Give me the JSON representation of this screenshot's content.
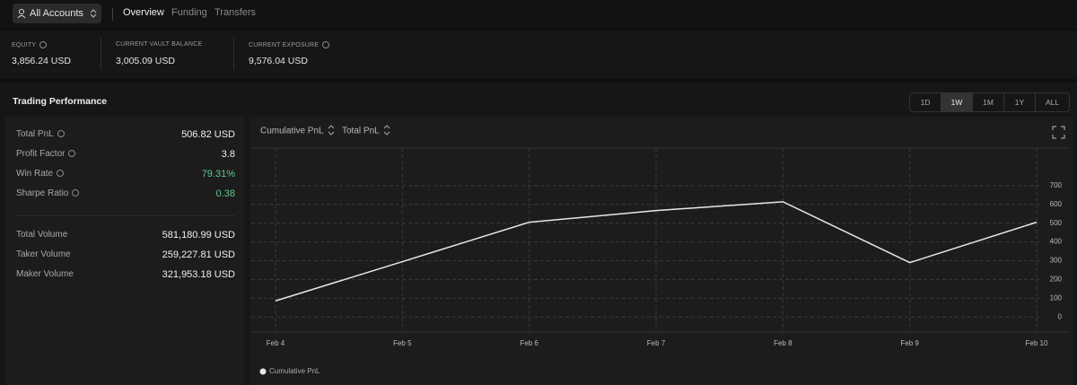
{
  "nav": {
    "account": "All Accounts",
    "tabs": [
      "Overview",
      "Funding",
      "Transfers"
    ]
  },
  "summary": [
    {
      "label": "EQUITY",
      "value": "3,856.24 USD"
    },
    {
      "label": "CURRENT VAULT BALANCE",
      "value": "3,005.09 USD"
    },
    {
      "label": "CURRENT EXPOSURE",
      "value": "9,576.04 USD"
    }
  ],
  "performance": {
    "title": "Trading Performance",
    "ranges": [
      "1D",
      "1W",
      "1M",
      "1Y",
      "ALL"
    ],
    "metrics": [
      {
        "label": "Total PnL",
        "value": "506.82 USD"
      },
      {
        "label": "Profit Factor",
        "value": "3.8"
      },
      {
        "label": "Win Rate",
        "value": "79.31%"
      },
      {
        "label": "Sharpe Ratio",
        "value": "0.38"
      }
    ],
    "volumes": [
      {
        "label": "Total Volume",
        "value": "581,180.99 USD"
      },
      {
        "label": "Taker Volume",
        "value": "259,227.81 USD"
      },
      {
        "label": "Maker Volume",
        "value": "321,953.18 USD"
      }
    ]
  },
  "chart_data": {
    "type": "line",
    "selectors": [
      "Cumulative PnL",
      "Total PnL"
    ],
    "x": [
      "Feb 4",
      "Feb 5",
      "Feb 6",
      "Feb 7",
      "Feb 8",
      "Feb 9",
      "Feb 10"
    ],
    "series": [
      {
        "name": "Cumulative PnL",
        "color": "#e8e8e8",
        "values": [
          86,
          295,
          505,
          567,
          614,
          290,
          505
        ]
      }
    ],
    "ylim": [
      -80,
      900
    ],
    "yticks": [
      0,
      100,
      200,
      300,
      400,
      500,
      600,
      700
    ],
    "grid": true
  }
}
